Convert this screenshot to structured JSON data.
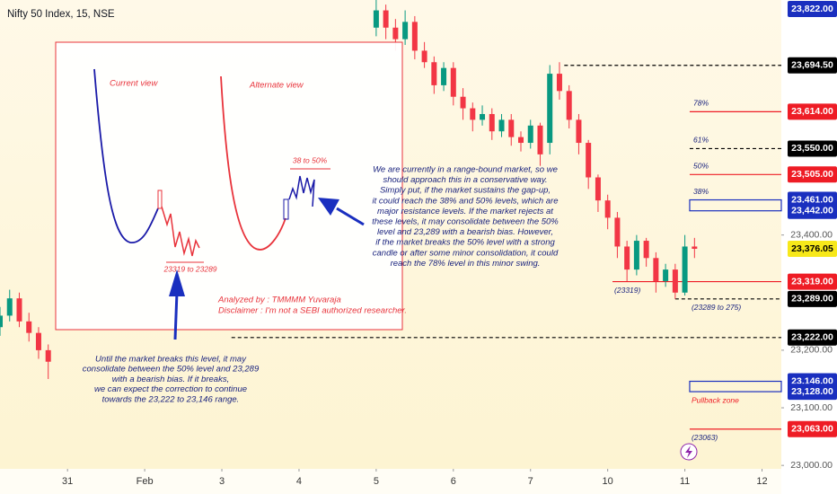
{
  "chart_data": {
    "type": "candlestick",
    "title": "Nifty 50 Index, 15, NSE",
    "x": [
      0,
      1,
      2,
      3,
      4,
      5,
      39,
      40,
      41,
      42,
      43,
      44,
      45,
      46,
      47,
      48,
      49,
      50,
      51,
      52,
      53,
      54,
      55,
      56,
      57,
      58,
      59,
      60,
      61,
      62,
      63,
      64,
      65,
      66,
      67,
      68,
      69,
      70,
      71,
      72
    ],
    "open": [
      23240,
      23260,
      23290,
      23250,
      23230,
      23200,
      23760,
      23790,
      23760,
      23740,
      23770,
      23720,
      23700,
      23660,
      23690,
      23640,
      23620,
      23600,
      23610,
      23580,
      23600,
      23570,
      23560,
      23590,
      23560,
      23680,
      23650,
      23600,
      23560,
      23500,
      23460,
      23430,
      23380,
      23340,
      23390,
      23360,
      23320,
      23340,
      23300,
      23380
    ],
    "high": [
      23275,
      23305,
      23300,
      23265,
      23240,
      23210,
      23815,
      23800,
      23775,
      23790,
      23780,
      23735,
      23710,
      23700,
      23700,
      23655,
      23630,
      23625,
      23620,
      23610,
      23610,
      23580,
      23600,
      23595,
      23695,
      23700,
      23660,
      23610,
      23565,
      23505,
      23470,
      23440,
      23390,
      23400,
      23395,
      23370,
      23350,
      23350,
      23400,
      23395
    ],
    "low": [
      23225,
      23250,
      23240,
      23215,
      23185,
      23150,
      23745,
      23740,
      23720,
      23730,
      23705,
      23690,
      23645,
      23650,
      23625,
      23600,
      23580,
      23590,
      23565,
      23570,
      23555,
      23545,
      23550,
      23520,
      23540,
      23635,
      23585,
      23540,
      23480,
      23440,
      23410,
      23360,
      23320,
      23330,
      23345,
      23300,
      23310,
      23289,
      23295,
      23360
    ],
    "close": [
      23260,
      23290,
      23250,
      23230,
      23200,
      23180,
      23790,
      23760,
      23740,
      23770,
      23720,
      23700,
      23660,
      23690,
      23640,
      23620,
      23600,
      23610,
      23580,
      23600,
      23570,
      23560,
      23590,
      23540,
      23680,
      23650,
      23600,
      23560,
      23500,
      23460,
      23430,
      23380,
      23340,
      23390,
      23360,
      23320,
      23340,
      23300,
      23380,
      23376.05
    ],
    "up_color": "#089981",
    "down_color": "#f23645",
    "xlim": [
      0,
      81
    ],
    "xticks": [
      {
        "value": 7,
        "label": "31"
      },
      {
        "value": 15,
        "label": "Feb"
      },
      {
        "value": 23,
        "label": "3"
      },
      {
        "value": 31,
        "label": "4"
      },
      {
        "value": 39,
        "label": "5"
      },
      {
        "value": 47,
        "label": "6"
      },
      {
        "value": 55,
        "label": "7"
      },
      {
        "value": 63,
        "label": "10"
      },
      {
        "value": 71,
        "label": "11"
      },
      {
        "value": 79,
        "label": "12"
      }
    ],
    "ylim": [
      22994,
      23808
    ],
    "yticks": [
      {
        "value": 23400,
        "label": "23,400.00"
      },
      {
        "value": 23200,
        "label": "23,200.00"
      },
      {
        "value": 23100,
        "label": "23,100.00"
      },
      {
        "value": 23000,
        "label": "23,000.00"
      }
    ],
    "price_tags": [
      {
        "value": 23822,
        "label": "23,822.00",
        "bg": "#1a2fbf",
        "fg": "#ffffff"
      },
      {
        "value": 23694.5,
        "label": "23,694.50",
        "bg": "#000000",
        "fg": "#ffffff"
      },
      {
        "value": 23614,
        "label": "23,614.00",
        "bg": "#ee1c25",
        "fg": "#ffffff"
      },
      {
        "value": 23550,
        "label": "23,550.00",
        "bg": "#000000",
        "fg": "#ffffff"
      },
      {
        "value": 23505,
        "label": "23,505.00",
        "bg": "#ee1c25",
        "fg": "#ffffff"
      },
      {
        "value": 23461,
        "label": "23,461.00",
        "bg": "#1a2fbf",
        "fg": "#ffffff"
      },
      {
        "value": 23442,
        "label": "23,442.00",
        "bg": "#1a2fbf",
        "fg": "#ffffff"
      },
      {
        "value": 23376.05,
        "label": "23,376.05",
        "bg": "#f7e81a",
        "fg": "#000000"
      },
      {
        "value": 23319,
        "label": "23,319.00",
        "bg": "#ee1c25",
        "fg": "#ffffff"
      },
      {
        "value": 23289,
        "label": "23,289.00",
        "bg": "#000000",
        "fg": "#ffffff"
      },
      {
        "value": 23222,
        "label": "23,222.00",
        "bg": "#000000",
        "fg": "#ffffff"
      },
      {
        "value": 23146,
        "label": "23,146.00",
        "bg": "#1a2fbf",
        "fg": "#ffffff"
      },
      {
        "value": 23128,
        "label": "23,128.00",
        "bg": "#1a2fbf",
        "fg": "#ffffff"
      },
      {
        "value": 23063,
        "label": "23,063.00",
        "bg": "#ee1c25",
        "fg": "#ffffff"
      }
    ],
    "levels": [
      {
        "value": 23694.5,
        "start": 58.5,
        "color": "#000000",
        "dashed": true
      },
      {
        "value": 23614,
        "start": 71.5,
        "color": "#ee1c25",
        "dashed": false
      },
      {
        "value": 23550,
        "start": 71.5,
        "color": "#000000",
        "dashed": true
      },
      {
        "value": 23505,
        "start": 71.5,
        "color": "#ee1c25",
        "dashed": false
      },
      {
        "value": 23319,
        "start": 63.5,
        "color": "#ee1c25",
        "dashed": false
      },
      {
        "value": 23289,
        "start": 70,
        "color": "#000000",
        "dashed": true
      },
      {
        "value": 23222,
        "start": 24,
        "color": "#000000",
        "dashed": true
      },
      {
        "value": 23063,
        "start": 71.5,
        "color": "#ee1c25",
        "dashed": false
      }
    ],
    "zones": [
      {
        "top": 23461,
        "bottom": 23442,
        "start": 71.5,
        "color": "#1a2fbf"
      },
      {
        "top": 23146,
        "bottom": 23128,
        "start": 71.5,
        "color": "#1a2fbf"
      }
    ],
    "fib_labels": [
      {
        "label": "78%",
        "value": 23614
      },
      {
        "label": "61%",
        "value": 23550
      },
      {
        "label": "50%",
        "value": 23505
      },
      {
        "label": "38%",
        "value": 23461
      }
    ],
    "level_notes": [
      {
        "label": "(23319)",
        "value": 23319,
        "at": 63.5,
        "color": "#1a237e"
      },
      {
        "label": "(23289 to 275)",
        "value": 23289,
        "at": 71.5,
        "color": "#1a237e"
      },
      {
        "label": "Pullback zone",
        "value": 23128,
        "at": 71.5,
        "color": "#ee1c25"
      },
      {
        "label": "(23063)",
        "value": 23063,
        "at": 71.5,
        "color": "#1a237e"
      }
    ],
    "inset": {
      "current_view": "Current view",
      "alternate_view": "Alternate view",
      "range_38_50": "38 to 50%",
      "range_low": "23319 to 23289",
      "analyzed_by": "Analyzed by : TMMMM Yuvaraja",
      "disclaimer": "Disclaimer : I'm not a SEBI authorized researcher."
    },
    "commentary": [
      "We are currently in a range-bound market, so we",
      "should approach this in a conservative way.",
      "Simply put, if the market sustains the gap-up,",
      "it could reach the 38% and 50% levels, which are",
      "major resistance levels. If the market rejects at",
      "these levels, it may consolidate between the 50%",
      "level and 23,289 with a bearish bias. However,",
      "if the market breaks the 50% level with a strong",
      "candle or after some minor consolidation, it could",
      "reach the 78% level in this minor swing."
    ],
    "note": [
      "Until the market breaks this level, it may",
      "consolidate between the 50% level and 23,289",
      "with a bearish bias. If it breaks,",
      "we can expect the correction to continue",
      "towards the 23,222 to 23,146 range."
    ]
  }
}
